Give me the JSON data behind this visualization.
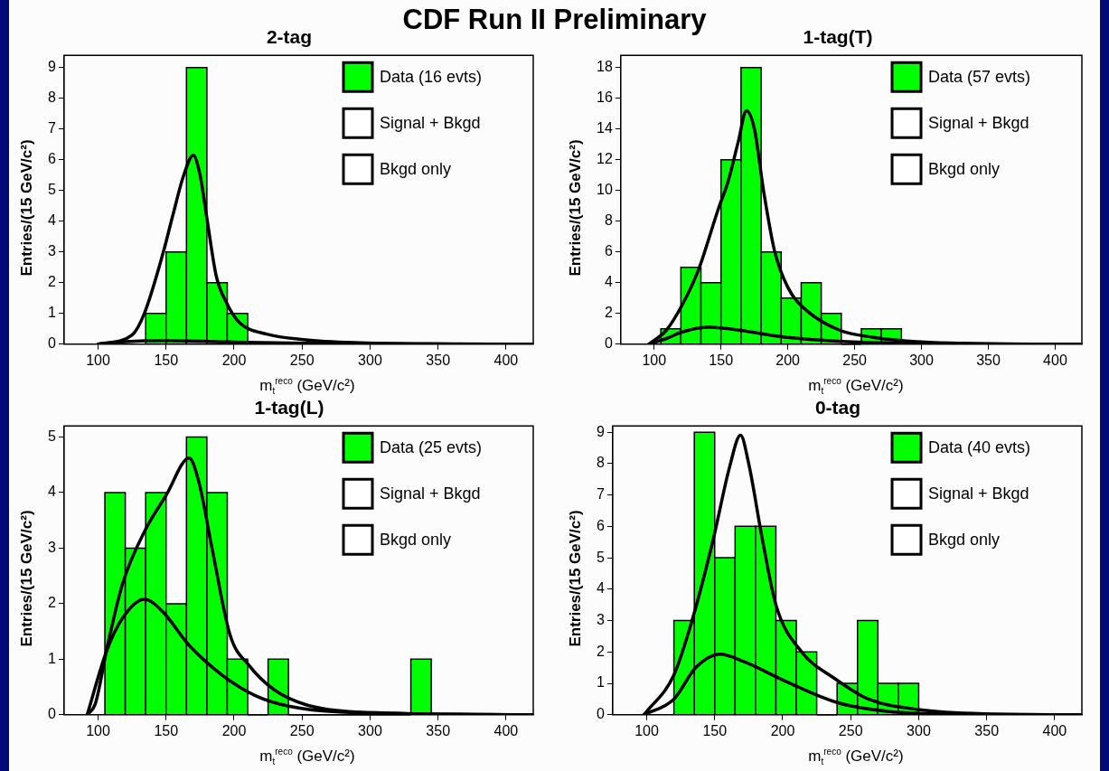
{
  "chart_data": [
    {
      "type": "histogram",
      "title": "2-tag",
      "annotations": [
        "CDF Run II Preliminary"
      ],
      "xlabel": "m$_{t}$$^{reco}$ (GeV/c²)",
      "ylabel": "Entries/(15 GeV/c²)",
      "xlim": [
        75,
        420
      ],
      "xticks": [
        100,
        150,
        200,
        250,
        300,
        350,
        400
      ],
      "ylim": [
        0,
        9.4
      ],
      "yticks": [
        0,
        1,
        2,
        3,
        4,
        5,
        6,
        7,
        8,
        9
      ],
      "grid": false,
      "legend": "top right",
      "marker": "none",
      "series": [
        {
          "name": "Data (16 evts)",
          "color": "#00ff00",
          "bins": [
            135,
            150,
            165,
            180,
            195,
            210
          ],
          "values": [
            1,
            3,
            9,
            2,
            1
          ]
        },
        {
          "name": "Signal + Bkgd",
          "type": "line",
          "color": "#000000",
          "x": [
            100,
            125,
            134,
            148,
            155,
            163,
            170,
            175,
            180,
            187,
            195,
            204,
            224,
            251,
            288,
            362,
            420
          ],
          "values": [
            0,
            0.3,
            1.0,
            3.0,
            4.2,
            5.5,
            6.15,
            5.5,
            4.1,
            2.2,
            1.3,
            0.7,
            0.33,
            0.15,
            0.05,
            0.01,
            0
          ]
        },
        {
          "name": "Bkgd only",
          "type": "line",
          "color": "#000000",
          "x": [
            100,
            120,
            150,
            200,
            250,
            300,
            420
          ],
          "values": [
            0,
            0.08,
            0.12,
            0.07,
            0.03,
            0.01,
            0
          ]
        }
      ]
    },
    {
      "type": "histogram",
      "title": "1-tag(T)",
      "xlabel": "m$_{t}$$^{reco}$ (GeV/c²)",
      "ylabel": "Entries/(15 GeV/c²)",
      "xlim": [
        75,
        420
      ],
      "xticks": [
        100,
        150,
        200,
        250,
        300,
        350,
        400
      ],
      "ylim": [
        0,
        18.8
      ],
      "yticks": [
        0,
        2,
        4,
        6,
        8,
        10,
        12,
        14,
        16,
        18
      ],
      "grid": false,
      "legend": "top right",
      "marker": "none",
      "series": [
        {
          "name": "Data (57 evts)",
          "color": "#00ff00",
          "bins": [
            105,
            120,
            135,
            150,
            165,
            180,
            195,
            210,
            225,
            240,
            255,
            270,
            285
          ],
          "values": [
            1,
            5,
            4,
            12,
            18,
            6,
            3,
            4,
            2,
            0,
            1,
            1
          ]
        },
        {
          "name": "Signal + Bkgd",
          "type": "line",
          "color": "#000000",
          "x": [
            96,
            109,
            120,
            133,
            148,
            155,
            163,
            169,
            175,
            182,
            190,
            200,
            214,
            239,
            264,
            300,
            337,
            420
          ],
          "values": [
            0,
            0.9,
            2.4,
            4.8,
            8.8,
            10.5,
            13.2,
            15.2,
            14,
            9.9,
            6.1,
            3.7,
            2.2,
            0.9,
            0.45,
            0.15,
            0.05,
            0
          ]
        },
        {
          "name": "Bkgd only",
          "type": "line",
          "color": "#000000",
          "x": [
            96,
            110,
            120,
            141,
            165,
            190,
            227,
            264,
            312,
            420
          ],
          "values": [
            0,
            0.4,
            0.77,
            1.1,
            0.9,
            0.55,
            0.25,
            0.1,
            0.03,
            0
          ]
        }
      ]
    },
    {
      "type": "histogram",
      "title": "1-tag(L)",
      "xlabel": "m$_{t}$$^{reco}$ (GeV/c²)",
      "ylabel": "Entries/(15 GeV/c²)",
      "xlim": [
        75,
        420
      ],
      "xticks": [
        100,
        150,
        200,
        250,
        300,
        350,
        400
      ],
      "ylim": [
        0,
        5.2
      ],
      "yticks": [
        0,
        1,
        2,
        3,
        4,
        5
      ],
      "grid": false,
      "legend": "top right",
      "marker": "none",
      "series": [
        {
          "name": "Data (25 evts)",
          "color": "#00ff00",
          "bins": [
            105,
            120,
            135,
            150,
            165,
            180,
            195,
            210,
            225,
            240,
            255,
            270,
            285,
            300,
            315,
            330,
            345
          ],
          "values": [
            4,
            3,
            4,
            2,
            5,
            4,
            1,
            0,
            1,
            0,
            0,
            0,
            0,
            0,
            0,
            1
          ]
        },
        {
          "name": "Signal + Bkgd",
          "type": "line",
          "color": "#000000",
          "x": [
            92,
            98,
            107,
            118,
            135,
            150,
            167,
            174,
            184,
            197,
            211,
            229,
            253,
            290,
            420
          ],
          "values": [
            0,
            0.2,
            1.25,
            2.36,
            3.34,
            3.95,
            4.62,
            4.2,
            2.97,
            1.44,
            0.89,
            0.46,
            0.18,
            0.05,
            0
          ]
        },
        {
          "name": "Bkgd only",
          "type": "line",
          "color": "#000000",
          "x": [
            92,
            106,
            118,
            134,
            147,
            167,
            192,
            216,
            241,
            278,
            420
          ],
          "values": [
            0,
            1.13,
            1.74,
            2.08,
            1.87,
            1.25,
            0.7,
            0.34,
            0.15,
            0.05,
            0
          ]
        }
      ]
    },
    {
      "type": "histogram",
      "title": "0-tag",
      "xlabel": "m$_{t}$$^{reco}$ (GeV/c²)",
      "ylabel": "Entries/(15 GeV/c²)",
      "xlim": [
        75,
        420
      ],
      "xticks": [
        100,
        150,
        200,
        250,
        300,
        350,
        400
      ],
      "ylim": [
        0,
        9.2
      ],
      "yticks": [
        0,
        1,
        2,
        3,
        4,
        5,
        6,
        7,
        8,
        9
      ],
      "grid": false,
      "legend": "top right",
      "marker": "none",
      "series": [
        {
          "name": "Data (40 evts)",
          "color": "#00ff00",
          "bins": [
            120,
            135,
            150,
            165,
            180,
            195,
            210,
            225,
            240,
            255,
            270,
            285,
            300
          ],
          "values": [
            3,
            9,
            5,
            6,
            6,
            3,
            2,
            0,
            1,
            3,
            1,
            1
          ]
        },
        {
          "name": "Signal + Bkgd",
          "type": "line",
          "color": "#000000",
          "x": [
            98,
            120,
            134,
            149,
            161,
            169,
            175,
            185,
            195,
            214,
            238,
            263,
            299,
            348,
            420
          ],
          "values": [
            0,
            1.27,
            3.1,
            5.6,
            7.9,
            8.9,
            8.0,
            5.6,
            3.5,
            2.0,
            1.16,
            0.5,
            0.17,
            0.03,
            0
          ]
        },
        {
          "name": "Bkgd only",
          "type": "line",
          "color": "#000000",
          "x": [
            98,
            120,
            136,
            154,
            171,
            203,
            240,
            277,
            314,
            420
          ],
          "values": [
            0,
            0.5,
            1.5,
            1.93,
            1.7,
            1.05,
            0.39,
            0.11,
            0.03,
            0
          ]
        }
      ]
    }
  ]
}
